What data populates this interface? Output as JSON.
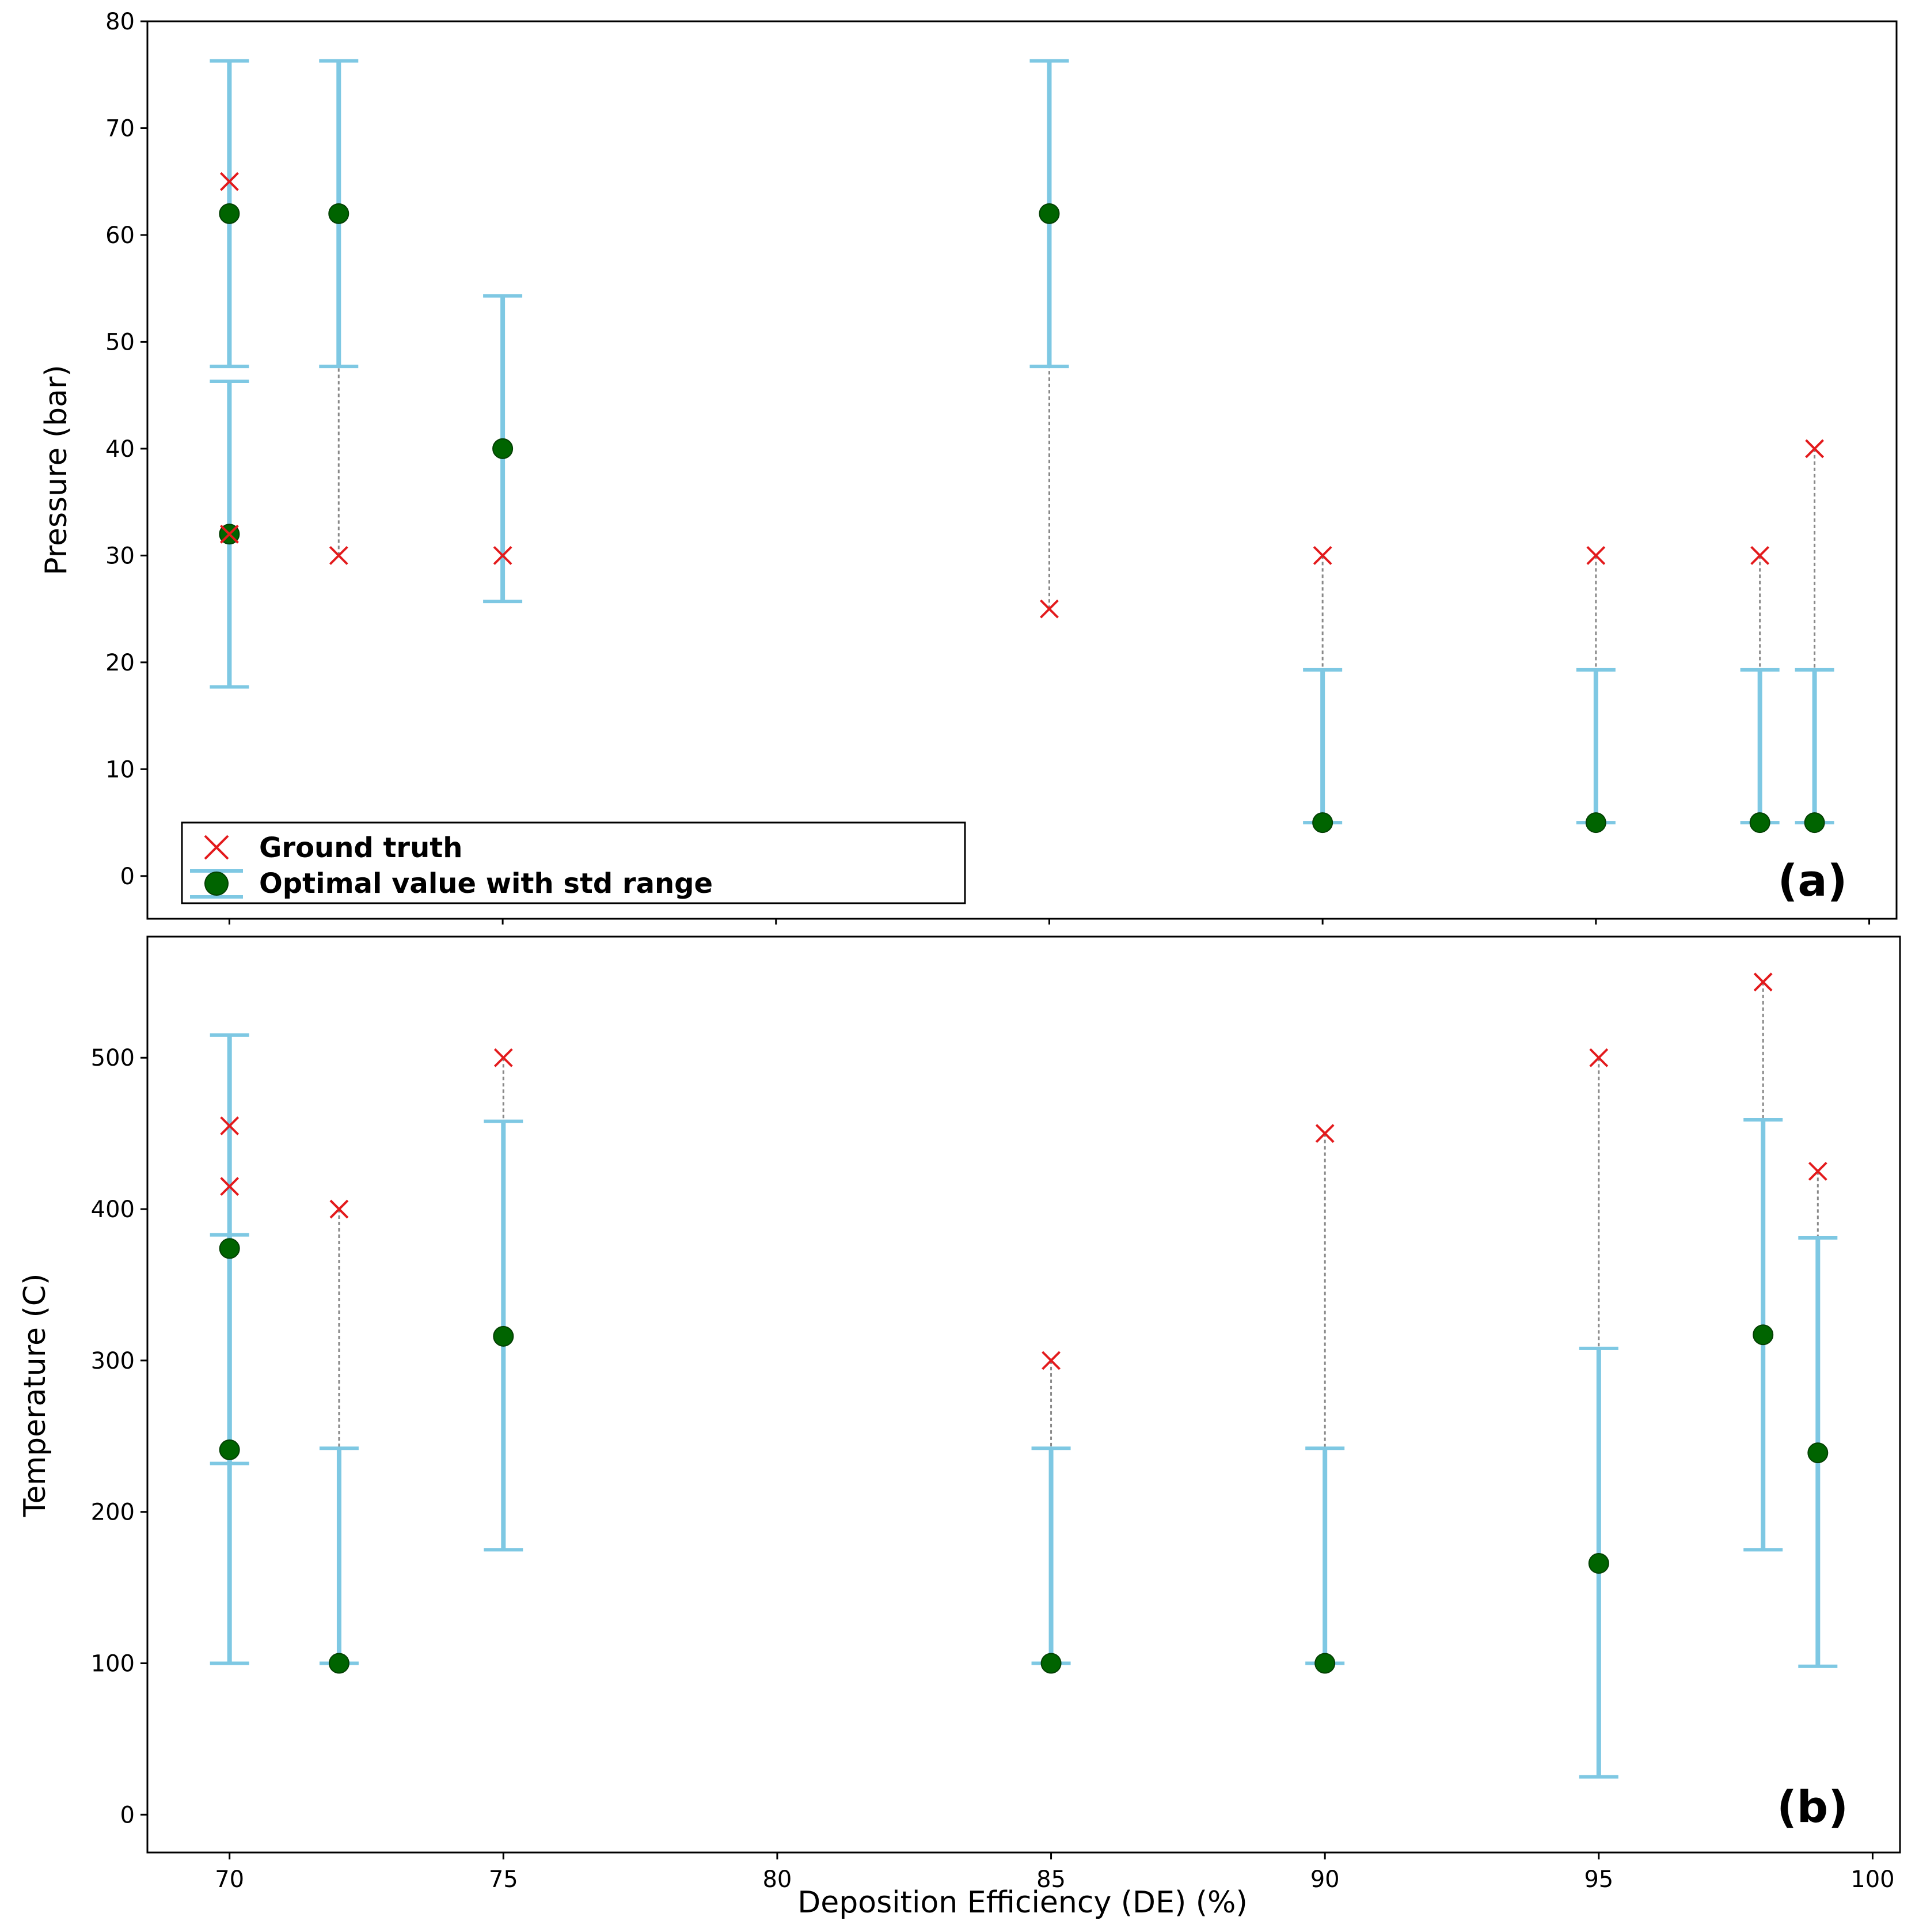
{
  "chart_data": [
    {
      "type": "scatter",
      "panel_label": "(a)",
      "xlabel": "",
      "ylabel": "Pressure (bar)",
      "xlim": [
        68.5,
        100.5
      ],
      "ylim": [
        -4,
        80
      ],
      "yticks": [
        0,
        10,
        20,
        30,
        40,
        50,
        60,
        70,
        80
      ],
      "grid": false,
      "legend": {
        "position": "bottom-left",
        "entries": [
          "Ground truth",
          "Optimal value with std range"
        ]
      },
      "points": [
        {
          "x": 70,
          "truth": 65,
          "optimal": 62,
          "err_low": 47.7,
          "err_high": 76.3
        },
        {
          "x": 70,
          "truth": 32,
          "optimal": 32,
          "err_low": 17.7,
          "err_high": 46.3
        },
        {
          "x": 72,
          "truth": 30,
          "optimal": 62,
          "err_low": 47.7,
          "err_high": 76.3
        },
        {
          "x": 75,
          "truth": 30,
          "optimal": 40,
          "err_low": 25.7,
          "err_high": 54.3
        },
        {
          "x": 85,
          "truth": 25,
          "optimal": 62,
          "err_low": 47.7,
          "err_high": 76.3
        },
        {
          "x": 90,
          "truth": 30,
          "optimal": 5,
          "err_low": 5,
          "err_high": 19.3
        },
        {
          "x": 95,
          "truth": 30,
          "optimal": 5,
          "err_low": 5,
          "err_high": 19.3
        },
        {
          "x": 98,
          "truth": 30,
          "optimal": 5,
          "err_low": 5,
          "err_high": 19.3
        },
        {
          "x": 99,
          "truth": 40,
          "optimal": 5,
          "err_low": 5,
          "err_high": 19.3
        }
      ]
    },
    {
      "type": "scatter",
      "panel_label": "(b)",
      "xlabel": "Deposition Efficiency (DE) (%)",
      "ylabel": "Temperature (C)",
      "xlim": [
        68.5,
        100.5
      ],
      "ylim": [
        -25,
        580
      ],
      "xticks": [
        70,
        75,
        80,
        85,
        90,
        95,
        100
      ],
      "yticks": [
        0,
        100,
        200,
        300,
        400,
        500
      ],
      "grid": false,
      "points": [
        {
          "x": 70,
          "truth": 455,
          "optimal": 241,
          "err_low": 100,
          "err_high": 383
        },
        {
          "x": 70,
          "truth": 415,
          "optimal": 374,
          "err_low": 232,
          "err_high": 515
        },
        {
          "x": 72,
          "truth": 400,
          "optimal": 100,
          "err_low": 100,
          "err_high": 242
        },
        {
          "x": 75,
          "truth": 500,
          "optimal": 316,
          "err_low": 175,
          "err_high": 458
        },
        {
          "x": 85,
          "truth": 300,
          "optimal": 100,
          "err_low": 100,
          "err_high": 242
        },
        {
          "x": 90,
          "truth": 450,
          "optimal": 100,
          "err_low": 100,
          "err_high": 242
        },
        {
          "x": 95,
          "truth": 500,
          "optimal": 166,
          "err_low": 25,
          "err_high": 308
        },
        {
          "x": 98,
          "truth": 550,
          "optimal": 317,
          "err_low": 175,
          "err_high": 459
        },
        {
          "x": 99,
          "truth": 425,
          "optimal": 239,
          "err_low": 98,
          "err_high": 381
        }
      ]
    }
  ],
  "colors": {
    "errorbar": "#7ec8e3",
    "optimal_marker": "#006400",
    "ground_truth": "#e31a1c",
    "connector": "#888888",
    "frame": "#000000"
  }
}
